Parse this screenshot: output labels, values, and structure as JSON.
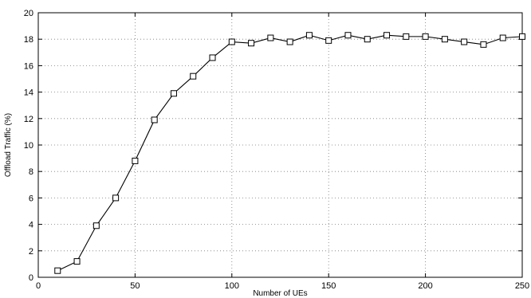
{
  "chart_data": {
    "type": "line",
    "title": "",
    "xlabel": "Number of UEs",
    "ylabel": "Offload Traffic (%)",
    "xlim": [
      0,
      250
    ],
    "ylim": [
      0,
      20
    ],
    "xticks": [
      0,
      50,
      100,
      150,
      200,
      250
    ],
    "yticks": [
      0,
      2,
      4,
      6,
      8,
      10,
      12,
      14,
      16,
      18,
      20
    ],
    "grid": true,
    "marker": "square",
    "series": [
      {
        "x": [
          10,
          20,
          30,
          40,
          50,
          60,
          70,
          80,
          90,
          100,
          110,
          120,
          130,
          140,
          150,
          160,
          170,
          180,
          190,
          200,
          210,
          220,
          230,
          240,
          250
        ],
        "values": [
          0.5,
          1.2,
          3.9,
          6.0,
          8.8,
          11.9,
          13.9,
          15.2,
          16.6,
          17.8,
          17.7,
          18.1,
          17.8,
          18.3,
          17.9,
          18.3,
          18.0,
          18.3,
          18.2,
          18.2,
          18.0,
          17.8,
          17.6,
          18.1,
          18.2
        ]
      }
    ]
  }
}
